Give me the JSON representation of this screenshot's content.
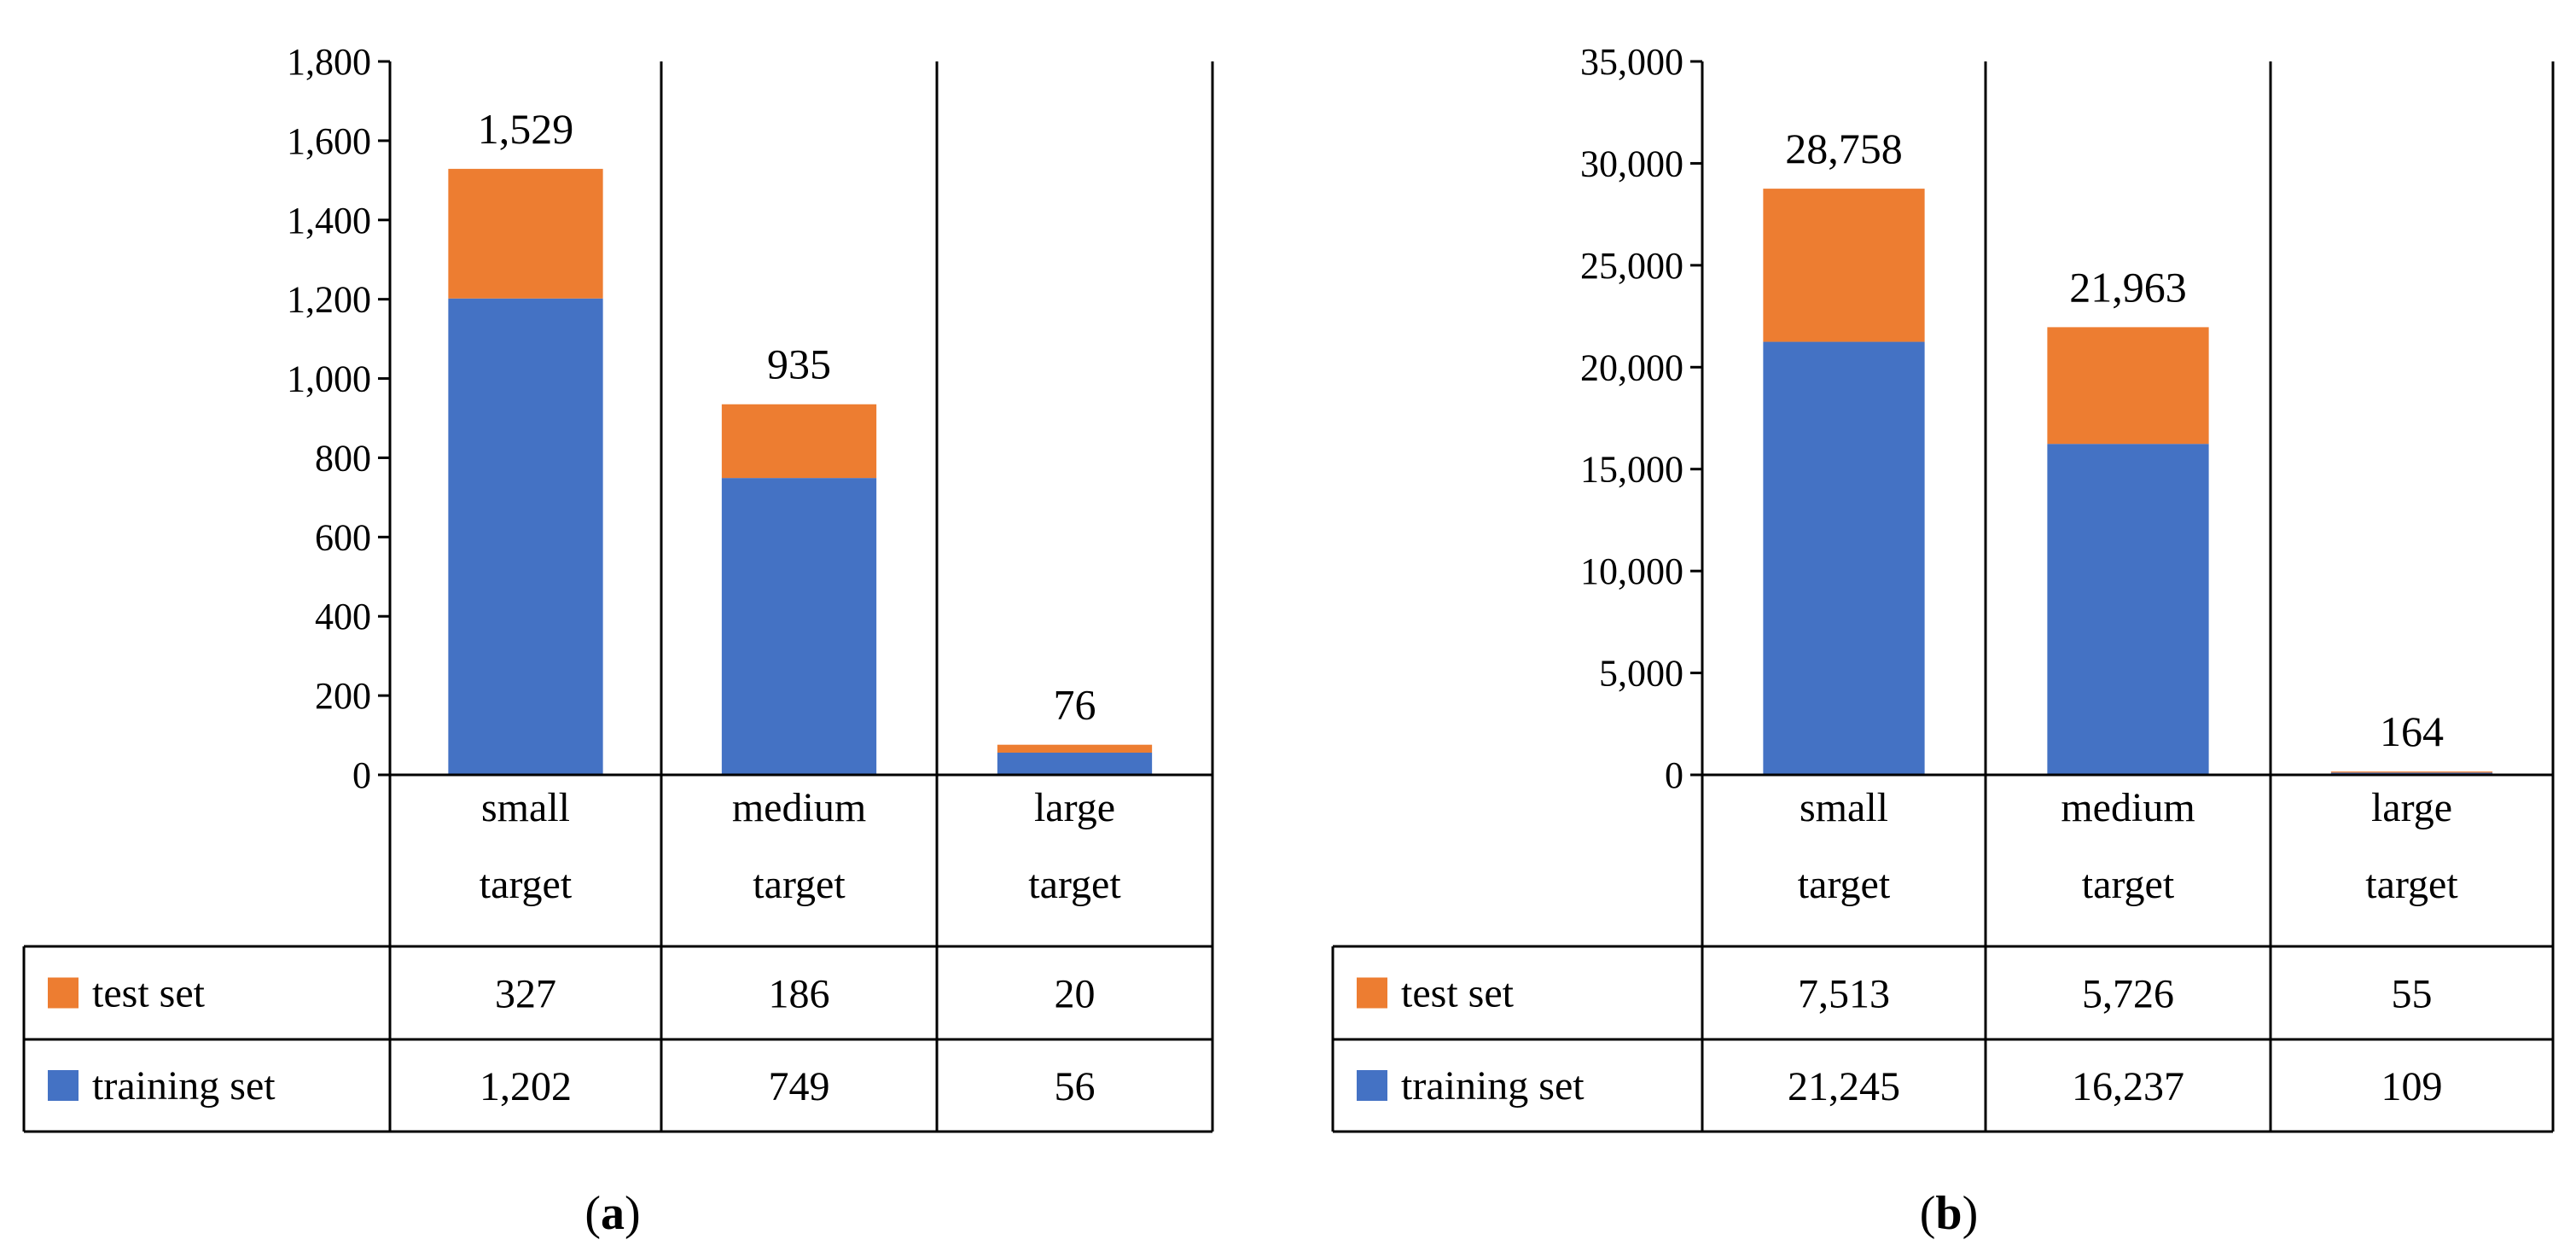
{
  "colors": {
    "training": "#4472C4",
    "test": "#ED7D31"
  },
  "chart_data": [
    {
      "type": "bar",
      "stacked": true,
      "panel_label": "a",
      "categories": [
        [
          "small",
          "target"
        ],
        [
          "medium",
          "target"
        ],
        [
          "large",
          "target"
        ]
      ],
      "ylim": [
        0,
        1800
      ],
      "ytick_step": 200,
      "ytick_labels": [
        "0",
        "200",
        "400",
        "600",
        "800",
        "1,000",
        "1,200",
        "1,400",
        "1,600",
        "1,800"
      ],
      "series": [
        {
          "name": "training set",
          "values": [
            1202,
            749,
            56
          ],
          "value_labels": [
            "1,202",
            "749",
            "56"
          ]
        },
        {
          "name": "test set",
          "values": [
            327,
            186,
            20
          ],
          "value_labels": [
            "327",
            "186",
            "20"
          ]
        }
      ],
      "totals": [
        "1,529",
        "935",
        "76"
      ]
    },
    {
      "type": "bar",
      "stacked": true,
      "panel_label": "b",
      "categories": [
        [
          "small",
          "target"
        ],
        [
          "medium",
          "target"
        ],
        [
          "large",
          "target"
        ]
      ],
      "ylim": [
        0,
        35000
      ],
      "ytick_step": 5000,
      "ytick_labels": [
        "0",
        "5,000",
        "10,000",
        "15,000",
        "20,000",
        "25,000",
        "30,000",
        "35,000"
      ],
      "series": [
        {
          "name": "training set",
          "values": [
            21245,
            16237,
            109
          ],
          "value_labels": [
            "21,245",
            "16,237",
            "109"
          ]
        },
        {
          "name": "test set",
          "values": [
            7513,
            5726,
            55
          ],
          "value_labels": [
            "7,513",
            "5,726",
            "55"
          ]
        }
      ],
      "totals": [
        "28,758",
        "21,963",
        "164"
      ]
    }
  ]
}
